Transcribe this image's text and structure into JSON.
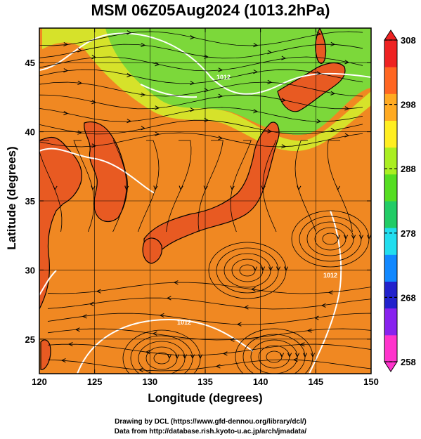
{
  "map": {
    "title": "MSM 06Z05Aug2024 (1013.2hPa)",
    "xlabel": "Longitude (degrees)",
    "ylabel": "Latitude  (degrees)",
    "lon_range": [
      120,
      150
    ],
    "lat_range": [
      22.5,
      47.5
    ],
    "lon_ticks": [
      {
        "v": 120,
        "t": "120"
      },
      {
        "v": 125,
        "t": "125"
      },
      {
        "v": 130,
        "t": "130"
      },
      {
        "v": 135,
        "t": "135"
      },
      {
        "v": 140,
        "t": "140"
      },
      {
        "v": 145,
        "t": "145"
      },
      {
        "v": 150,
        "t": "150"
      }
    ],
    "lat_ticks": [
      {
        "v": 25,
        "t": "25"
      },
      {
        "v": 30,
        "t": "30"
      },
      {
        "v": 35,
        "t": "35"
      },
      {
        "v": 40,
        "t": "40"
      },
      {
        "v": 45,
        "t": "45"
      }
    ],
    "colorbar": {
      "min": 258,
      "max": 308,
      "ticks": [
        {
          "v": 258,
          "t": "258"
        },
        {
          "v": 268,
          "t": "268"
        },
        {
          "v": 278,
          "t": "278"
        },
        {
          "v": 288,
          "t": "288"
        },
        {
          "v": 298,
          "t": "298"
        },
        {
          "v": 308,
          "t": "308"
        }
      ],
      "colors": [
        "#ff33cc",
        "#8822ee",
        "#2222cc",
        "#1188ff",
        "#22ddee",
        "#22cc66",
        "#55dd22",
        "#aaee22",
        "#ffee22",
        "#ffaa22",
        "#ff6622",
        "#ee2222"
      ]
    },
    "contour_labels": [
      "1012",
      "1012",
      "1012"
    ],
    "colors": {
      "ocean_field": "#f08822",
      "land_field": "#e85a22",
      "cool_field": "#7cd83a",
      "isobar": "#ffffff",
      "coast": "#000000",
      "streamline": "#000000"
    }
  },
  "credits": {
    "line1": "Drawing by DCL (https://www.gfd-dennou.org/library/dcl/)",
    "line2": "Data from http://database.rish.kyoto-u.ac.jp/arch/jmadata/"
  }
}
